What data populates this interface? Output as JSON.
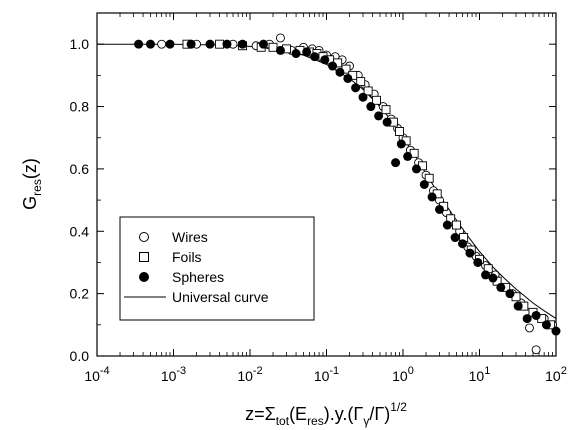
{
  "chart_data": {
    "type": "scatter",
    "title": "",
    "xlabel": {
      "main": "z=Σ",
      "sub1": "tot",
      "mid1": "(E",
      "sub2": "res",
      "mid2": ").y.(Γ",
      "sub3": "γ",
      "mid3": "/Γ)",
      "sup": "1/2"
    },
    "ylabel": {
      "main": "G",
      "sub": "res",
      "tail": "(z)"
    },
    "x_scale": "log",
    "xlim": [
      0.0001,
      100
    ],
    "ylim": [
      0.0,
      1.1
    ],
    "x_ticks": [
      0.0001,
      0.001,
      0.01,
      0.1,
      1,
      10,
      100
    ],
    "x_tick_labels": [
      {
        "base": "10",
        "exp": "-4"
      },
      {
        "base": "10",
        "exp": "-3"
      },
      {
        "base": "10",
        "exp": "-2"
      },
      {
        "base": "10",
        "exp": "-1"
      },
      {
        "base": "10",
        "exp": "0"
      },
      {
        "base": "10",
        "exp": "1"
      },
      {
        "base": "10",
        "exp": "2"
      }
    ],
    "y_ticks": [
      0.0,
      0.2,
      0.4,
      0.6,
      0.8,
      1.0
    ],
    "y_tick_labels": [
      "0.0",
      "0.2",
      "0.4",
      "0.6",
      "0.8",
      "1.0"
    ],
    "grid": false,
    "legend_position": "left-center",
    "legend_labels": [
      "Wires",
      "Foils",
      "Spheres",
      "Universal curve"
    ],
    "series": [
      {
        "name": "Wires",
        "marker": "open-circle",
        "x": [
          0.0007,
          0.002,
          0.006,
          0.012,
          0.018,
          0.025,
          0.035,
          0.05,
          0.065,
          0.08,
          0.1,
          0.13,
          0.16,
          0.2,
          0.26,
          0.32,
          0.42,
          0.55,
          0.7,
          0.85,
          1.0,
          1.25,
          1.6,
          2.0,
          2.5,
          3.0,
          3.7,
          4.5,
          5.5,
          7.0,
          9.0,
          12,
          16,
          20,
          27,
          35,
          45,
          55,
          70,
          90
        ],
        "y": [
          1.0,
          1.0,
          1.0,
          0.995,
          1.0,
          1.02,
          0.98,
          0.99,
          0.985,
          0.98,
          0.965,
          0.96,
          0.95,
          0.93,
          0.9,
          0.87,
          0.84,
          0.8,
          0.76,
          0.73,
          0.7,
          0.66,
          0.62,
          0.58,
          0.53,
          0.5,
          0.46,
          0.43,
          0.4,
          0.35,
          0.32,
          0.29,
          0.26,
          0.22,
          0.2,
          0.17,
          0.09,
          0.02,
          0.12,
          0.1
        ]
      },
      {
        "name": "Foils",
        "marker": "open-square",
        "x": [
          0.0015,
          0.004,
          0.008,
          0.014,
          0.02,
          0.03,
          0.045,
          0.06,
          0.075,
          0.09,
          0.11,
          0.14,
          0.18,
          0.22,
          0.28,
          0.35,
          0.45,
          0.6,
          0.75,
          0.9,
          1.1,
          1.4,
          1.8,
          2.2,
          2.8,
          3.4,
          4.2,
          5.0,
          6.2,
          7.8,
          10,
          13,
          17,
          22,
          30,
          38,
          50,
          65,
          85
        ],
        "y": [
          1.0,
          1.0,
          0.995,
          0.99,
          0.99,
          0.985,
          0.98,
          0.975,
          0.97,
          0.96,
          0.95,
          0.94,
          0.92,
          0.9,
          0.88,
          0.85,
          0.82,
          0.79,
          0.75,
          0.72,
          0.69,
          0.65,
          0.61,
          0.57,
          0.52,
          0.48,
          0.44,
          0.42,
          0.38,
          0.34,
          0.31,
          0.28,
          0.24,
          0.22,
          0.19,
          0.16,
          0.14,
          0.12,
          0.1
        ]
      },
      {
        "name": "Spheres",
        "marker": "filled-circle",
        "x": [
          0.00035,
          0.0005,
          0.0009,
          0.0017,
          0.003,
          0.005,
          0.008,
          0.015,
          0.025,
          0.04,
          0.055,
          0.07,
          0.095,
          0.12,
          0.15,
          0.19,
          0.24,
          0.3,
          0.38,
          0.48,
          0.62,
          0.8,
          0.95,
          1.15,
          1.5,
          1.9,
          2.4,
          3.0,
          3.8,
          4.8,
          6.0,
          7.5,
          9.5,
          12,
          15,
          19,
          25,
          32,
          42,
          55,
          75,
          100
        ],
        "y": [
          1.0,
          1.0,
          1.0,
          1.0,
          1.0,
          1.0,
          1.0,
          1.0,
          0.98,
          0.97,
          0.975,
          0.96,
          0.95,
          0.93,
          0.91,
          0.89,
          0.86,
          0.83,
          0.8,
          0.77,
          0.75,
          0.62,
          0.68,
          0.64,
          0.6,
          0.55,
          0.51,
          0.47,
          0.42,
          0.38,
          0.36,
          0.33,
          0.3,
          0.26,
          0.25,
          0.22,
          0.2,
          0.16,
          0.12,
          0.13,
          0.1,
          0.08
        ]
      }
    ],
    "curve": {
      "name": "Universal curve",
      "x": [
        0.0001,
        0.001,
        0.005,
        0.01,
        0.02,
        0.05,
        0.1,
        0.2,
        0.3,
        0.5,
        0.7,
        1.0,
        1.5,
        2.0,
        3.0,
        5.0,
        7.0,
        10,
        15,
        20,
        30,
        50,
        70,
        100
      ],
      "y": [
        1.0,
        1.0,
        0.997,
        0.993,
        0.985,
        0.965,
        0.935,
        0.89,
        0.855,
        0.8,
        0.755,
        0.7,
        0.635,
        0.585,
        0.515,
        0.435,
        0.385,
        0.335,
        0.285,
        0.255,
        0.215,
        0.17,
        0.145,
        0.12
      ]
    }
  }
}
